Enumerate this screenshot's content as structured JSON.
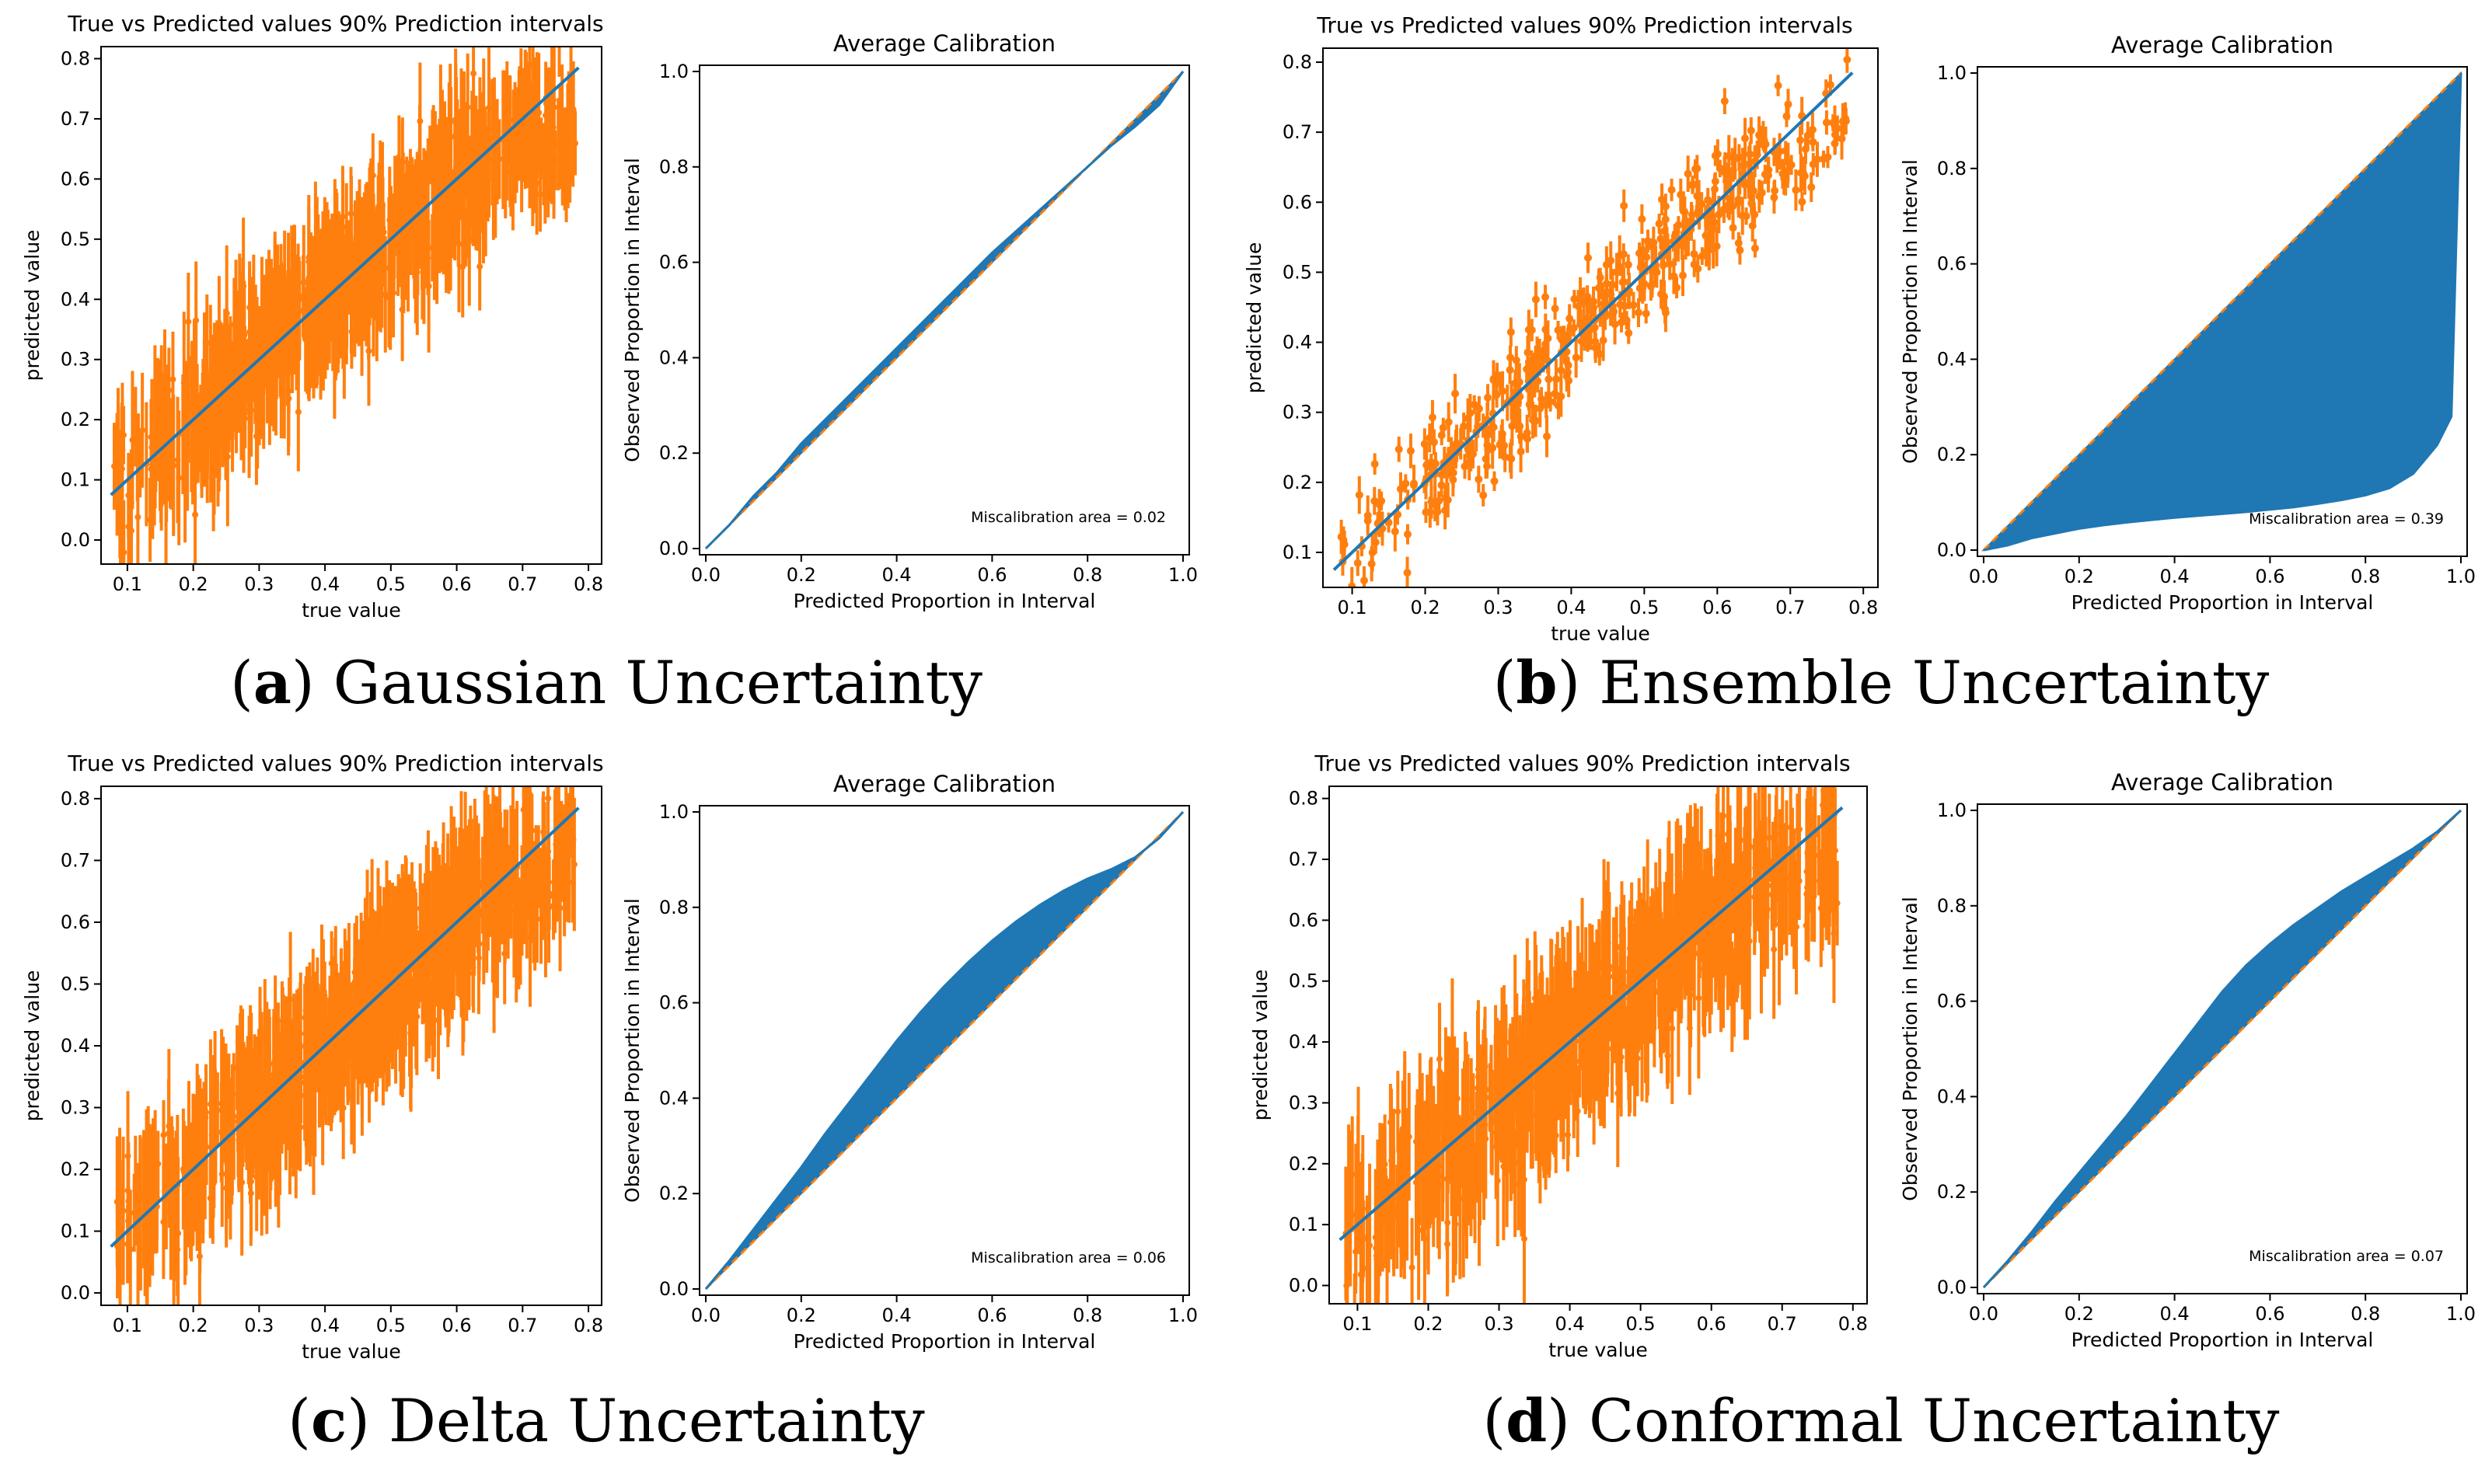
{
  "figure": {
    "panels": [
      {
        "caption_letter": "a",
        "caption_text": "Gaussian Uncertainty",
        "scatter": {
          "title": "True vs Predicted values 90% Prediction intervals",
          "xlabel": "true value",
          "ylabel": "predicted value",
          "xticks": [
            "0.1",
            "0.2",
            "0.3",
            "0.4",
            "0.5",
            "0.6",
            "0.7",
            "0.8"
          ],
          "yticks": [
            "0.0",
            "0.1",
            "0.2",
            "0.3",
            "0.4",
            "0.5",
            "0.6",
            "0.7",
            "0.8"
          ]
        },
        "calibration": {
          "title": "Average Calibration",
          "xlabel": "Predicted Proportion in Interval",
          "ylabel": "Observed Proportion in Interval",
          "xticks": [
            "0.0",
            "0.2",
            "0.4",
            "0.6",
            "0.8",
            "1.0"
          ],
          "yticks": [
            "0.0",
            "0.2",
            "0.4",
            "0.6",
            "0.8",
            "1.0"
          ],
          "annotation": "Miscalibration area = 0.02"
        }
      },
      {
        "caption_letter": "b",
        "caption_text": "Ensemble Uncertainty",
        "scatter": {
          "title": "True vs Predicted values 90% Prediction intervals",
          "xlabel": "true value",
          "ylabel": "predicted value",
          "xticks": [
            "0.1",
            "0.2",
            "0.3",
            "0.4",
            "0.5",
            "0.6",
            "0.7",
            "0.8"
          ],
          "yticks": [
            "0.1",
            "0.2",
            "0.3",
            "0.4",
            "0.5",
            "0.6",
            "0.7",
            "0.8"
          ]
        },
        "calibration": {
          "title": "Average Calibration",
          "xlabel": "Predicted Proportion in Interval",
          "ylabel": "Observed Proportion in Interval",
          "xticks": [
            "0.0",
            "0.2",
            "0.4",
            "0.6",
            "0.8",
            "1.0"
          ],
          "yticks": [
            "0.0",
            "0.2",
            "0.4",
            "0.6",
            "0.8",
            "1.0"
          ],
          "annotation": "Miscalibration area = 0.39"
        }
      },
      {
        "caption_letter": "c",
        "caption_text": "Delta Uncertainty",
        "scatter": {
          "title": "True vs Predicted values 90% Prediction intervals",
          "xlabel": "true value",
          "ylabel": "predicted value",
          "xticks": [
            "0.1",
            "0.2",
            "0.3",
            "0.4",
            "0.5",
            "0.6",
            "0.7",
            "0.8"
          ],
          "yticks": [
            "0.0",
            "0.1",
            "0.2",
            "0.3",
            "0.4",
            "0.5",
            "0.6",
            "0.7",
            "0.8"
          ]
        },
        "calibration": {
          "title": "Average Calibration",
          "xlabel": "Predicted Proportion in Interval",
          "ylabel": "Observed Proportion in Interval",
          "xticks": [
            "0.0",
            "0.2",
            "0.4",
            "0.6",
            "0.8",
            "1.0"
          ],
          "yticks": [
            "0.0",
            "0.2",
            "0.4",
            "0.6",
            "0.8",
            "1.0"
          ],
          "annotation": "Miscalibration area = 0.06"
        }
      },
      {
        "caption_letter": "d",
        "caption_text": "Conformal Uncertainty",
        "scatter": {
          "title": "True vs Predicted values 90% Prediction intervals",
          "xlabel": "true value",
          "ylabel": "predicted value",
          "xticks": [
            "0.1",
            "0.2",
            "0.3",
            "0.4",
            "0.5",
            "0.6",
            "0.7",
            "0.8"
          ],
          "yticks": [
            "0.0",
            "0.1",
            "0.2",
            "0.3",
            "0.4",
            "0.5",
            "0.6",
            "0.7",
            "0.8"
          ]
        },
        "calibration": {
          "title": "Average Calibration",
          "xlabel": "Predicted Proportion in Interval",
          "ylabel": "Observed Proportion in Interval",
          "xticks": [
            "0.0",
            "0.2",
            "0.4",
            "0.6",
            "0.8",
            "1.0"
          ],
          "yticks": [
            "0.0",
            "0.2",
            "0.4",
            "0.6",
            "0.8",
            "1.0"
          ],
          "annotation": "Miscalibration area = 0.07"
        }
      }
    ]
  },
  "chart_data": [
    {
      "type": "scatter",
      "panel": "a",
      "title": "True vs Predicted values 90% Prediction intervals",
      "xlabel": "true value",
      "ylabel": "predicted value",
      "xlim": [
        0.06,
        0.82
      ],
      "ylim": [
        -0.04,
        0.82
      ],
      "series": [
        {
          "name": "diagonal",
          "color": "#1f77b4",
          "x": [
            0.075,
            0.785
          ],
          "y": [
            0.075,
            0.785
          ]
        },
        {
          "name": "predictions with 90% intervals",
          "color": "#ff7f0e",
          "n_points": 700,
          "interval_halfwidth": 0.08,
          "residual_sd": 0.055
        }
      ]
    },
    {
      "type": "area",
      "panel": "a",
      "title": "Average Calibration",
      "xlabel": "Predicted Proportion in Interval",
      "ylabel": "Observed Proportion in Interval",
      "xlim": [
        0.0,
        1.0
      ],
      "ylim": [
        0.0,
        1.0
      ],
      "ideal_color": "#ff7f0e",
      "fill_color": "#1f77b4",
      "x": [
        0.0,
        0.05,
        0.1,
        0.15,
        0.2,
        0.25,
        0.3,
        0.35,
        0.4,
        0.45,
        0.5,
        0.55,
        0.6,
        0.65,
        0.7,
        0.75,
        0.8,
        0.85,
        0.9,
        0.95,
        1.0
      ],
      "observed": [
        0.0,
        0.05,
        0.11,
        0.16,
        0.22,
        0.27,
        0.32,
        0.37,
        0.42,
        0.47,
        0.52,
        0.57,
        0.62,
        0.665,
        0.71,
        0.755,
        0.8,
        0.845,
        0.885,
        0.93,
        1.0
      ],
      "miscalibration_area": 0.02
    },
    {
      "type": "scatter",
      "panel": "b",
      "title": "True vs Predicted values 90% Prediction intervals",
      "xlabel": "true value",
      "ylabel": "predicted value",
      "xlim": [
        0.06,
        0.82
      ],
      "ylim": [
        0.05,
        0.82
      ],
      "series": [
        {
          "name": "diagonal",
          "color": "#1f77b4",
          "x": [
            0.075,
            0.785
          ],
          "y": [
            0.075,
            0.785
          ]
        },
        {
          "name": "predictions with 90% intervals",
          "color": "#ff7f0e",
          "n_points": 450,
          "interval_halfwidth": 0.02,
          "residual_sd": 0.045
        }
      ]
    },
    {
      "type": "area",
      "panel": "b",
      "title": "Average Calibration",
      "xlabel": "Predicted Proportion in Interval",
      "ylabel": "Observed Proportion in Interval",
      "xlim": [
        0.0,
        1.0
      ],
      "ylim": [
        0.0,
        1.0
      ],
      "ideal_color": "#ff7f0e",
      "fill_color": "#1f77b4",
      "x": [
        0.0,
        0.05,
        0.1,
        0.15,
        0.2,
        0.25,
        0.3,
        0.35,
        0.4,
        0.45,
        0.5,
        0.55,
        0.6,
        0.65,
        0.7,
        0.75,
        0.8,
        0.85,
        0.9,
        0.95,
        0.98,
        1.0
      ],
      "observed": [
        0.0,
        0.01,
        0.025,
        0.035,
        0.045,
        0.052,
        0.058,
        0.063,
        0.068,
        0.072,
        0.076,
        0.08,
        0.085,
        0.09,
        0.097,
        0.105,
        0.115,
        0.13,
        0.16,
        0.22,
        0.28,
        1.0
      ],
      "miscalibration_area": 0.39
    },
    {
      "type": "scatter",
      "panel": "c",
      "title": "True vs Predicted values 90% Prediction intervals",
      "xlabel": "true value",
      "ylabel": "predicted value",
      "xlim": [
        0.06,
        0.82
      ],
      "ylim": [
        -0.02,
        0.82
      ],
      "series": [
        {
          "name": "diagonal",
          "color": "#1f77b4",
          "x": [
            0.075,
            0.785
          ],
          "y": [
            0.075,
            0.785
          ]
        },
        {
          "name": "predictions with 90% intervals",
          "color": "#ff7f0e",
          "n_points": 700,
          "interval_halfwidth": 0.085,
          "residual_sd": 0.055
        }
      ]
    },
    {
      "type": "area",
      "panel": "c",
      "title": "Average Calibration",
      "xlabel": "Predicted Proportion in Interval",
      "ylabel": "Observed Proportion in Interval",
      "xlim": [
        0.0,
        1.0
      ],
      "ylim": [
        0.0,
        1.0
      ],
      "ideal_color": "#ff7f0e",
      "fill_color": "#1f77b4",
      "x": [
        0.0,
        0.05,
        0.1,
        0.15,
        0.2,
        0.25,
        0.3,
        0.35,
        0.4,
        0.45,
        0.5,
        0.55,
        0.6,
        0.65,
        0.7,
        0.75,
        0.8,
        0.85,
        0.9,
        0.95,
        1.0
      ],
      "observed": [
        0.0,
        0.06,
        0.125,
        0.19,
        0.255,
        0.325,
        0.39,
        0.455,
        0.52,
        0.58,
        0.635,
        0.685,
        0.73,
        0.77,
        0.805,
        0.835,
        0.86,
        0.88,
        0.905,
        0.945,
        1.0
      ],
      "miscalibration_area": 0.06
    },
    {
      "type": "scatter",
      "panel": "d",
      "title": "True vs Predicted values 90% Prediction intervals",
      "xlabel": "true value",
      "ylabel": "predicted value",
      "xlim": [
        0.06,
        0.82
      ],
      "ylim": [
        -0.03,
        0.82
      ],
      "series": [
        {
          "name": "diagonal",
          "color": "#1f77b4",
          "x": [
            0.075,
            0.785
          ],
          "y": [
            0.075,
            0.785
          ]
        },
        {
          "name": "predictions with 90% intervals",
          "color": "#ff7f0e",
          "n_points": 700,
          "interval_halfwidth": 0.09,
          "residual_sd": 0.06
        }
      ]
    },
    {
      "type": "area",
      "panel": "d",
      "title": "Average Calibration",
      "xlabel": "Predicted Proportion in Interval",
      "ylabel": "Observed Proportion in Interval",
      "xlim": [
        0.0,
        1.0
      ],
      "ylim": [
        0.0,
        1.0
      ],
      "ideal_color": "#ff7f0e",
      "fill_color": "#1f77b4",
      "x": [
        0.0,
        0.05,
        0.1,
        0.15,
        0.2,
        0.25,
        0.3,
        0.35,
        0.4,
        0.45,
        0.5,
        0.55,
        0.6,
        0.65,
        0.7,
        0.75,
        0.8,
        0.85,
        0.9,
        0.95,
        1.0
      ],
      "observed": [
        0.0,
        0.055,
        0.115,
        0.18,
        0.24,
        0.3,
        0.36,
        0.425,
        0.49,
        0.555,
        0.62,
        0.675,
        0.72,
        0.76,
        0.795,
        0.83,
        0.86,
        0.89,
        0.92,
        0.955,
        1.0
      ],
      "miscalibration_area": 0.07
    }
  ]
}
